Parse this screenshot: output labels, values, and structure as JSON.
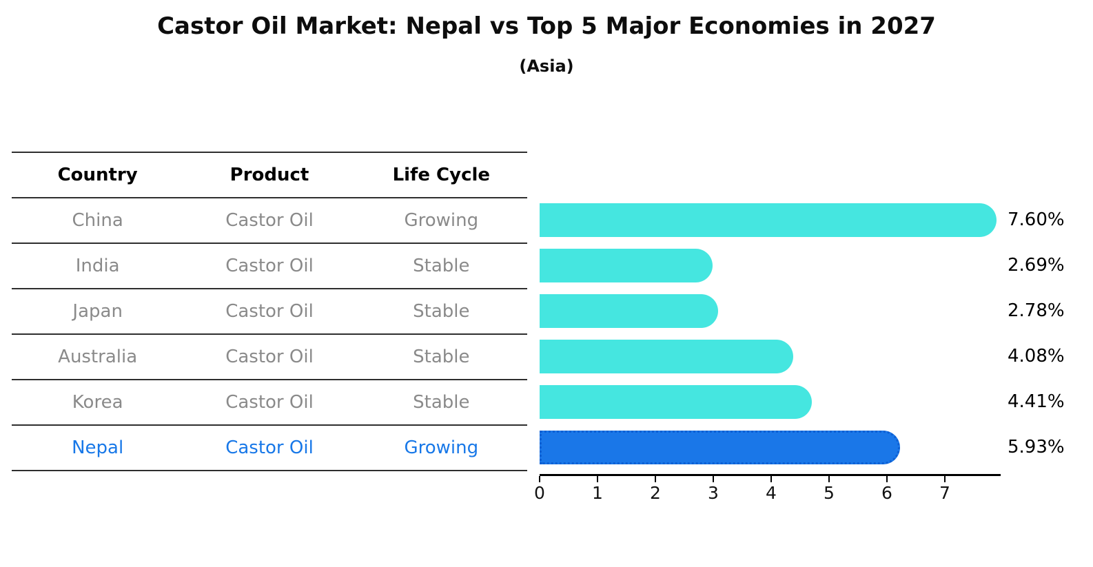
{
  "title": "Castor Oil Market: Nepal vs Top 5 Major Economies in 2027",
  "subtitle": "(Asia)",
  "table": {
    "headers": [
      "Country",
      "Product",
      "Life Cycle"
    ],
    "rows": [
      {
        "country": "China",
        "product": "Castor Oil",
        "life_cycle": "Growing",
        "highlight": false
      },
      {
        "country": "India",
        "product": "Castor Oil",
        "life_cycle": "Stable",
        "highlight": false
      },
      {
        "country": "Japan",
        "product": "Castor Oil",
        "life_cycle": "Stable",
        "highlight": false
      },
      {
        "country": "Australia",
        "product": "Castor Oil",
        "life_cycle": "Stable",
        "highlight": false
      },
      {
        "country": "Korea",
        "product": "Castor Oil",
        "life_cycle": "Stable",
        "highlight": false
      },
      {
        "country": "Nepal",
        "product": "Castor Oil",
        "life_cycle": "Growing",
        "highlight": true
      }
    ]
  },
  "chart_data": {
    "type": "bar",
    "orientation": "horizontal",
    "title": "Castor Oil Market: Nepal vs Top 5 Major Economies in 2027",
    "subtitle": "(Asia)",
    "categories": [
      "China",
      "India",
      "Japan",
      "Australia",
      "Korea",
      "Nepal"
    ],
    "values": [
      7.6,
      2.69,
      2.78,
      4.08,
      4.41,
      5.93
    ],
    "value_labels": [
      "7.60%",
      "2.69%",
      "2.78%",
      "4.08%",
      "4.41%",
      "5.93%"
    ],
    "x_ticks": [
      0,
      1,
      2,
      3,
      4,
      5,
      6,
      7
    ],
    "xlim": [
      0,
      7.95
    ],
    "grid": false,
    "legend": "none",
    "highlight_index": 5,
    "colors": {
      "default_bar": "#45E6E0",
      "highlight_bar": "#1A77E8",
      "highlight_border": "#0D5FD3",
      "highlight_text": "#1878E8",
      "table_text": "#8A8A8A",
      "header_text": "#000000",
      "axis_text": "#111111"
    }
  }
}
